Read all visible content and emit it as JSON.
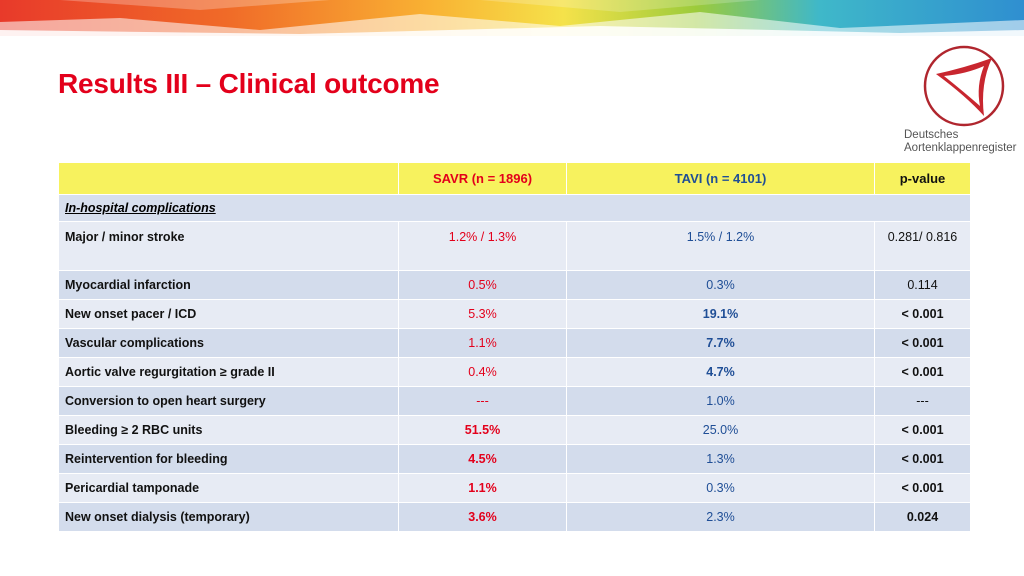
{
  "title": "Results III – Clinical outcome",
  "logo": {
    "line1": "Deutsches",
    "line2": "Aortenklappenregister"
  },
  "table": {
    "headers": {
      "label": "",
      "savr": "SAVR (n = 1896)",
      "tavi": "TAVI (n = 4101)",
      "pvalue": "p-value"
    },
    "section": "In-hospital complications",
    "rows": [
      {
        "label": "Major / minor stroke",
        "savr": "1.2% / 1.3%",
        "tavi": "1.5% / 1.2%",
        "pvalue": "0.281/ 0.816"
      },
      {
        "label": "Myocardial infarction",
        "savr": "0.5%",
        "tavi": "0.3%",
        "pvalue": "0.114"
      },
      {
        "label": "New onset pacer / ICD",
        "savr": "5.3%",
        "tavi": "19.1%",
        "pvalue": "< 0.001"
      },
      {
        "label": "Vascular complications",
        "savr": "1.1%",
        "tavi": "7.7%",
        "pvalue": "< 0.001"
      },
      {
        "label": "Aortic valve regurgitation ≥ grade II",
        "savr": "0.4%",
        "tavi": "4.7%",
        "pvalue": "< 0.001"
      },
      {
        "label": "Conversion to open heart surgery",
        "savr": "---",
        "tavi": "1.0%",
        "pvalue": "---"
      },
      {
        "label": "Bleeding ≥ 2 RBC units",
        "savr": "51.5%",
        "tavi": "25.0%",
        "pvalue": "< 0.001"
      },
      {
        "label": "Reintervention for bleeding",
        "savr": "4.5%",
        "tavi": "1.3%",
        "pvalue": "< 0.001"
      },
      {
        "label": "Pericardial tamponade",
        "savr": "1.1%",
        "tavi": "0.3%",
        "pvalue": "< 0.001"
      },
      {
        "label": "New onset dialysis (temporary)",
        "savr": "3.6%",
        "tavi": "2.3%",
        "pvalue": "0.024"
      }
    ]
  },
  "colors": {
    "title": "#e3001b",
    "savr": "#e3001b",
    "tavi": "#1f4e96",
    "header_bg": "#f7f25e",
    "row_bg": "#e7ebf4",
    "row_alt_bg": "#d3dcec"
  }
}
